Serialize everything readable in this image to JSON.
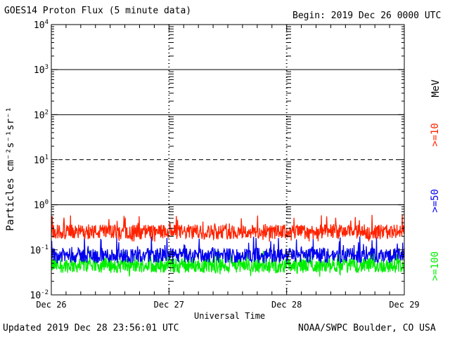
{
  "header": {
    "title": "GOES14 Proton Flux (5 minute data)",
    "begin": "Begin: 2019 Dec 26 0000 UTC"
  },
  "footer": {
    "updated": "Updated 2019 Dec 28 23:56:01 UTC",
    "credit": "NOAA/SWPC Boulder, CO USA"
  },
  "chart_data": {
    "type": "line",
    "title": "GOES14 Proton Flux (5 minute data)",
    "xlabel": "Universal Time",
    "ylabel": "Particles cm⁻²s⁻¹sr⁻¹",
    "y_scale": "log",
    "ylim": [
      0.01,
      10000
    ],
    "y_ticks": [
      {
        "base": "10",
        "exp": "-2"
      },
      {
        "base": "10",
        "exp": "-1"
      },
      {
        "base": "10",
        "exp": "0"
      },
      {
        "base": "10",
        "exp": "1"
      },
      {
        "base": "10",
        "exp": "2"
      },
      {
        "base": "10",
        "exp": "3"
      },
      {
        "base": "10",
        "exp": "4"
      }
    ],
    "x_ticks": [
      "Dec 26",
      "Dec 27",
      "Dec 28",
      "Dec 29"
    ],
    "xlim": [
      "2019-12-26",
      "2019-12-29"
    ],
    "threshold_lines": [
      {
        "value": 1,
        "style": "solid"
      },
      {
        "value": 10,
        "style": "dashed"
      },
      {
        "value": 100,
        "style": "solid"
      },
      {
        "value": 1000,
        "style": "solid"
      }
    ],
    "legend_placement": "right (vertical)",
    "legend_unit": "MeV",
    "series": [
      {
        "name": ">=10",
        "color": "#ff2200",
        "typical": 0.25,
        "min": 0.15,
        "max": 0.6
      },
      {
        "name": ">=50",
        "color": "#0000ee",
        "typical": 0.075,
        "min": 0.05,
        "max": 0.2
      },
      {
        "name": ">=100",
        "color": "#00ee00",
        "typical": 0.045,
        "min": 0.025,
        "max": 0.1
      }
    ]
  }
}
